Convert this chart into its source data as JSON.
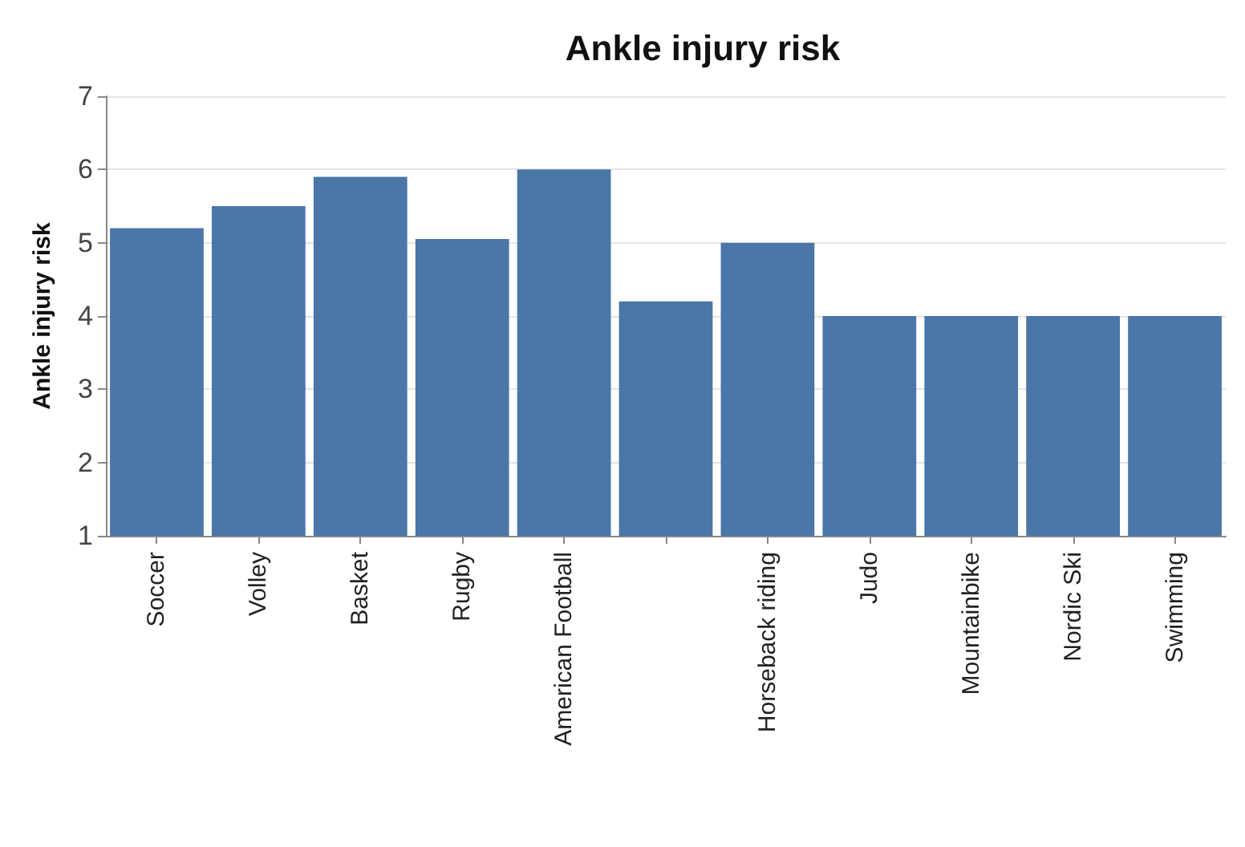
{
  "chart_data": {
    "type": "bar",
    "title": "Ankle injury risk",
    "ylabel": "Ankle injury risk",
    "categories": [
      "Soccer",
      "Volley",
      "Basket",
      "Rugby",
      "American Football",
      null,
      "Horseback riding",
      "Judo",
      "Mountainbike",
      "Nordic Ski",
      "Swimming"
    ],
    "values": [
      5.2,
      5.5,
      5.9,
      5.05,
      6.0,
      4.2,
      5.0,
      4.0,
      4.0,
      4.0,
      4.0
    ],
    "color": "#4a76a8",
    "ylim": [
      1,
      7
    ],
    "yticks": [
      1,
      2,
      3,
      4,
      5,
      6,
      7
    ],
    "grid": "y"
  }
}
